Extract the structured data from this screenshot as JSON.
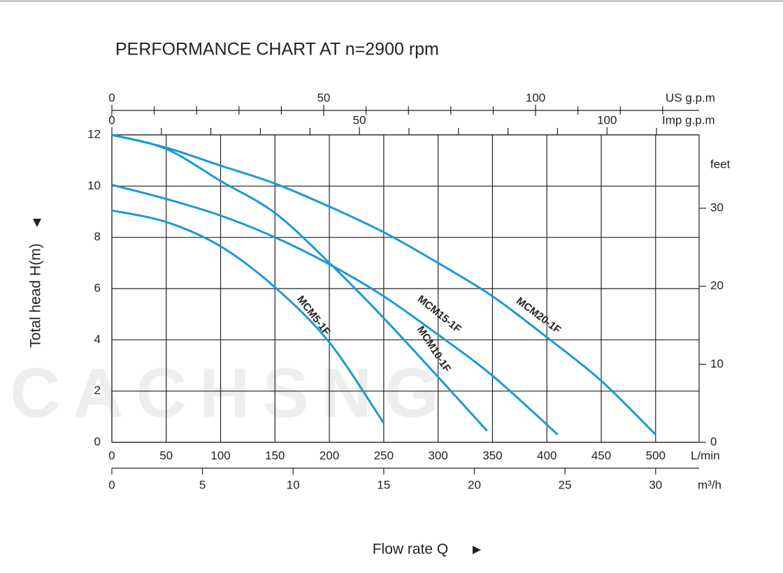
{
  "chart_data": {
    "type": "line",
    "title": "PERFORMANCE CHART AT n=2900 rpm",
    "ylabel": "Total head H(m)",
    "xlabel": "Flow rate Q",
    "watermark": "CACHSNG",
    "xunit": "L/min",
    "y2unit": "feet",
    "m3h_unit": "m³/h",
    "us_unit": "US g.p.m",
    "imp_unit": "Imp g.p.m",
    "xlim": [
      0,
      540
    ],
    "xticks": [
      0,
      50,
      100,
      150,
      200,
      250,
      300,
      350,
      400,
      450,
      500
    ],
    "ylim": [
      0,
      12
    ],
    "yticks": [
      0,
      2,
      4,
      6,
      8,
      10,
      12
    ],
    "y2lim": [
      0,
      39.4
    ],
    "y2ticks": [
      0,
      10,
      20,
      30
    ],
    "m3h_lim": [
      0,
      32.4
    ],
    "m3h_ticks": [
      0,
      5,
      10,
      15,
      20,
      25,
      30
    ],
    "us_lim": [
      0,
      138.6
    ],
    "us_ticks": [
      0,
      50,
      100
    ],
    "us_minor_ticks": [
      10,
      20,
      30,
      40,
      60,
      70,
      80,
      90,
      110,
      120,
      130
    ],
    "imp_lim": [
      0,
      118.6
    ],
    "imp_ticks": [
      0,
      50,
      100
    ],
    "imp_minor_ticks": [
      10,
      20,
      30,
      40,
      60,
      70,
      80,
      90,
      110
    ],
    "grid": true,
    "series": [
      {
        "name": "MCM5-1F",
        "color": "#1a9ad6",
        "x": [
          0,
          50,
          100,
          150,
          200,
          250
        ],
        "values": [
          9.05,
          8.6,
          7.65,
          6.05,
          3.9,
          0.75
        ]
      },
      {
        "name": "MCM10-1F",
        "color": "#1a9ad6",
        "x": [
          0,
          50,
          100,
          150,
          200,
          250,
          300,
          345
        ],
        "values": [
          12,
          11.45,
          10.2,
          8.95,
          7.0,
          4.85,
          2.55,
          0.45
        ]
      },
      {
        "name": "MCM15-1F",
        "color": "#1a9ad6",
        "x": [
          0,
          50,
          100,
          150,
          200,
          250,
          300,
          350,
          410
        ],
        "values": [
          10.05,
          9.5,
          8.85,
          8.0,
          6.95,
          5.7,
          4.2,
          2.6,
          0.3
        ]
      },
      {
        "name": "MCM20-1F",
        "color": "#1a9ad6",
        "x": [
          0,
          50,
          100,
          150,
          200,
          250,
          300,
          350,
          400,
          450,
          500
        ],
        "values": [
          12,
          11.5,
          10.8,
          10.1,
          9.2,
          8.2,
          7.0,
          5.7,
          4.1,
          2.4,
          0.3
        ]
      }
    ]
  }
}
